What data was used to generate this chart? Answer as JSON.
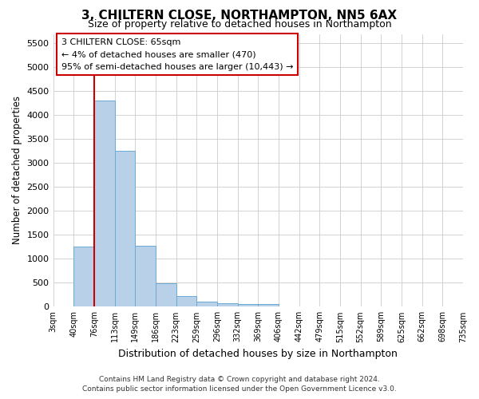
{
  "title": "3, CHILTERN CLOSE, NORTHAMPTON, NN5 6AX",
  "subtitle": "Size of property relative to detached houses in Northampton",
  "xlabel": "Distribution of detached houses by size in Northampton",
  "ylabel": "Number of detached properties",
  "footer_line1": "Contains HM Land Registry data © Crown copyright and database right 2024.",
  "footer_line2": "Contains public sector information licensed under the Open Government Licence v3.0.",
  "annotation_title": "3 CHILTERN CLOSE: 65sqm",
  "annotation_line1": "← 4% of detached houses are smaller (470)",
  "annotation_line2": "95% of semi-detached houses are larger (10,443) →",
  "bar_color": "#b8d0e8",
  "bar_edge_color": "#6aaad4",
  "marker_line_color": "#cc0000",
  "annotation_box_edge": "#cc0000",
  "bins": [
    "3sqm",
    "40sqm",
    "76sqm",
    "113sqm",
    "149sqm",
    "186sqm",
    "223sqm",
    "259sqm",
    "296sqm",
    "332sqm",
    "369sqm",
    "406sqm",
    "442sqm",
    "479sqm",
    "515sqm",
    "552sqm",
    "589sqm",
    "625sqm",
    "662sqm",
    "698sqm",
    "735sqm"
  ],
  "values": [
    0,
    1250,
    4300,
    3250,
    1280,
    490,
    220,
    100,
    70,
    55,
    55,
    0,
    0,
    0,
    0,
    0,
    0,
    0,
    0,
    0
  ],
  "ylim": [
    0,
    5700
  ],
  "yticks": [
    0,
    500,
    1000,
    1500,
    2000,
    2500,
    3000,
    3500,
    4000,
    4500,
    5000,
    5500
  ],
  "background_color": "#ffffff",
  "grid_color": "#cccccc"
}
